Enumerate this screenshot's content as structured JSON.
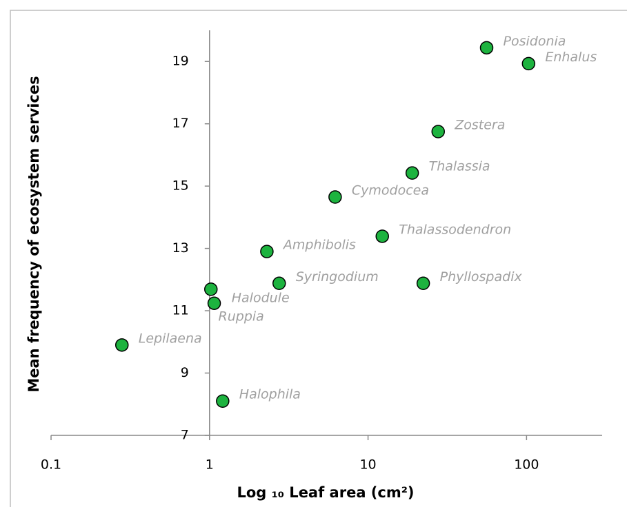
{
  "chart_data": {
    "type": "scatter",
    "x_label": "Log ₁₀ Leaf area (cm²)",
    "y_label": "Mean frequency of ecosystem services",
    "x_log": true,
    "xlim": [
      0.1,
      300
    ],
    "xticks": [
      0.1,
      1,
      10,
      100
    ],
    "ylim": [
      7,
      20
    ],
    "yticks": [
      7,
      9,
      11,
      13,
      15,
      17,
      19
    ],
    "color": "#1db33f",
    "labels": [
      "Posidonia",
      "Enhalus",
      "Zostera",
      "Thalassia",
      "Cymodocea",
      "Thalassodendron",
      "Amphibolis",
      "Syringodium",
      "Phyllospadix",
      "Halodule",
      "Ruppia",
      "Lepilaena",
      "Halophila"
    ],
    "x": [
      56,
      103,
      27.7,
      19,
      6.2,
      12.3,
      2.3,
      2.75,
      22.3,
      1.02,
      1.07,
      0.28,
      1.21
    ],
    "values": [
      19.44,
      18.93,
      16.75,
      15.42,
      14.65,
      13.39,
      12.9,
      11.88,
      11.88,
      11.69,
      11.24,
      9.9,
      8.1
    ]
  }
}
